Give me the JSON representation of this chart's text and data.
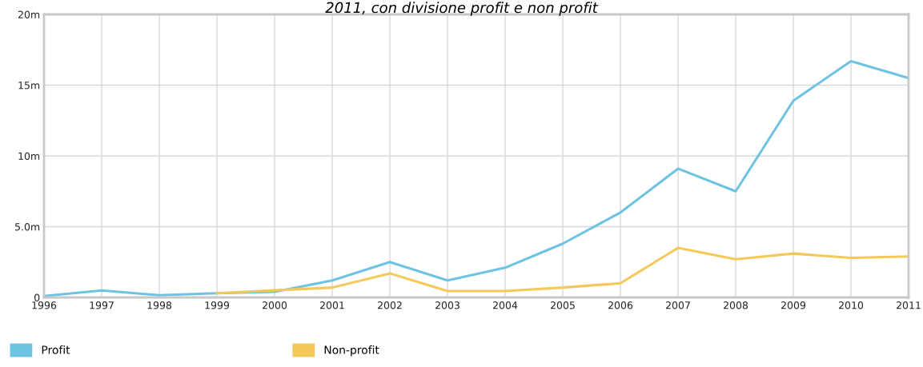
{
  "chart_data": {
    "type": "line",
    "title": "2011, con divisione profit e non profit",
    "categories": [
      "1996",
      "1997",
      "1998",
      "1999",
      "2000",
      "2001",
      "2002",
      "2003",
      "2004",
      "2005",
      "2006",
      "2007",
      "2008",
      "2009",
      "2010",
      "2011"
    ],
    "series": [
      {
        "name": "Profit",
        "color": "#6ec3e3",
        "values": [
          0.1,
          0.5,
          0.15,
          0.3,
          0.4,
          1.2,
          2.5,
          1.2,
          2.1,
          3.8,
          6.0,
          9.1,
          7.5,
          13.9,
          16.7,
          15.5
        ]
      },
      {
        "name": "Non-profit",
        "color": "#f5c85a",
        "values": [
          null,
          null,
          null,
          0.3,
          0.5,
          0.7,
          1.7,
          0.45,
          0.45,
          0.7,
          1.0,
          3.5,
          2.7,
          3.1,
          2.8,
          2.9
        ]
      }
    ],
    "ylim": [
      0,
      20
    ],
    "yticks": [
      {
        "value": 0,
        "label": "0"
      },
      {
        "value": 5,
        "label": "5.0m"
      },
      {
        "value": 10,
        "label": "10m"
      },
      {
        "value": 15,
        "label": "15m"
      },
      {
        "value": 20,
        "label": "20m"
      }
    ],
    "grid": true,
    "legend": "bottom left",
    "marker": "none",
    "line_style": "solid"
  }
}
